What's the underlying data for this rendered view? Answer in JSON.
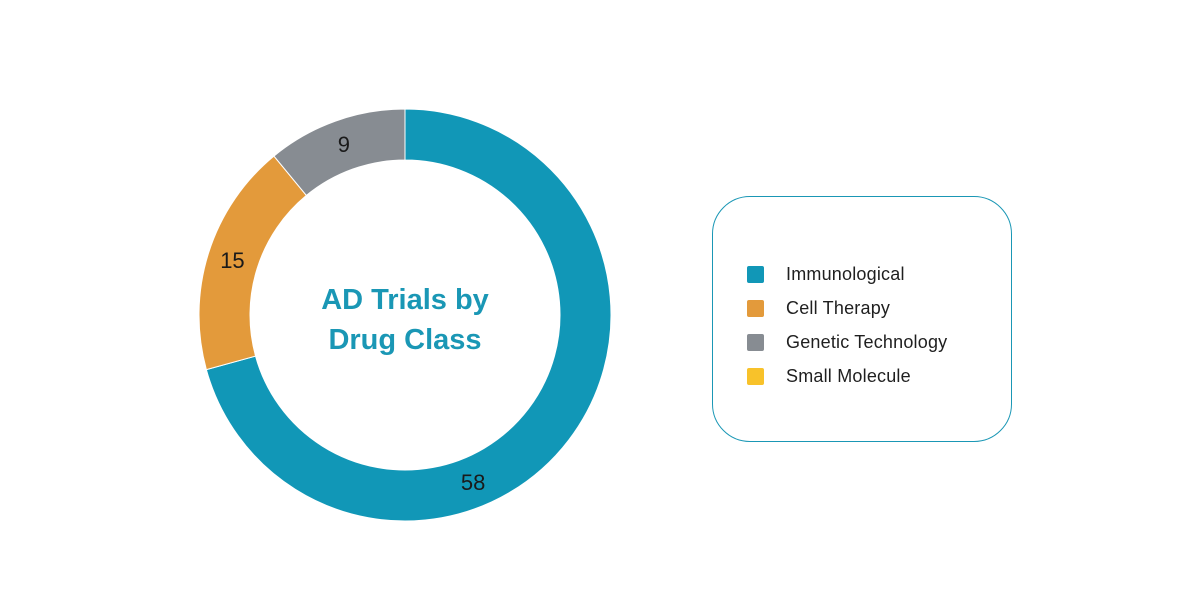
{
  "chart_data": {
    "type": "pie",
    "title": "AD Trials by Drug Class",
    "title_lines": [
      "AD Trials by",
      "Drug Class"
    ],
    "categories": [
      "Immunological",
      "Cell Therapy",
      "Genetic Technology",
      "Small Molecule"
    ],
    "values": [
      58,
      15,
      9,
      0
    ],
    "data_labels": [
      "58",
      "15",
      "9",
      ""
    ],
    "colors": [
      "#1197b7",
      "#e39a3b",
      "#878c92",
      "#f8c22a"
    ],
    "legend_position": "right",
    "style": "donut"
  }
}
